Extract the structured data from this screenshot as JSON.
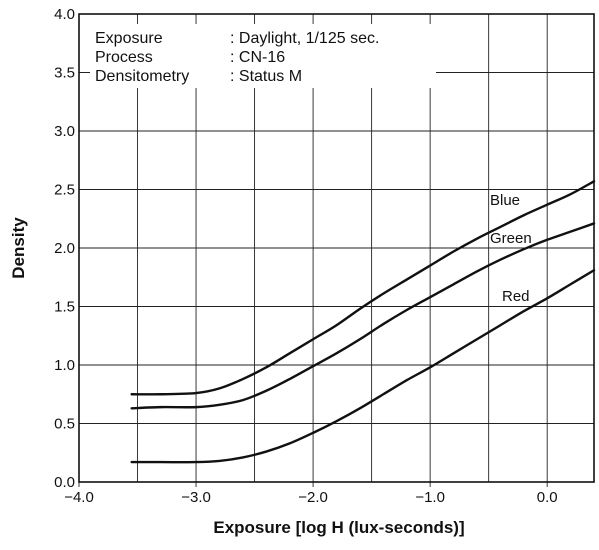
{
  "chart_data": {
    "type": "line",
    "title": "",
    "xlabel": "Exposure [log H (lux-seconds)]",
    "ylabel": "Density",
    "xlim": [
      -4.0,
      0.4
    ],
    "ylim": [
      0.0,
      4.0
    ],
    "x_ticks": [
      -4.0,
      -3.0,
      -2.0,
      -1.0,
      0.0
    ],
    "x_tick_labels": [
      "−4.0",
      "−3.0",
      "−2.0",
      "−1.0",
      "0.0"
    ],
    "y_ticks": [
      0.0,
      0.5,
      1.0,
      1.5,
      2.0,
      2.5,
      3.0,
      3.5,
      4.0
    ],
    "y_tick_labels": [
      "0.0",
      "0.5",
      "1.0",
      "1.5",
      "2.0",
      "2.5",
      "3.0",
      "3.5",
      "4.0"
    ],
    "x_minor_step": 0.5,
    "grid": true,
    "info": [
      {
        "label": "Exposure",
        "value": ": Daylight, 1/125 sec."
      },
      {
        "label": "Process",
        "value": ": CN-16"
      },
      {
        "label": "Densitometry",
        "value": ": Status M"
      }
    ],
    "series": [
      {
        "name": "Blue",
        "x": [
          -3.55,
          -3.3,
          -3.0,
          -2.8,
          -2.6,
          -2.4,
          -2.2,
          -2.0,
          -1.8,
          -1.6,
          -1.4,
          -1.2,
          -1.0,
          -0.8,
          -0.6,
          -0.4,
          -0.2,
          0.0,
          0.2,
          0.4
        ],
        "y": [
          0.75,
          0.75,
          0.76,
          0.8,
          0.88,
          0.98,
          1.1,
          1.22,
          1.34,
          1.48,
          1.61,
          1.73,
          1.85,
          1.97,
          2.08,
          2.18,
          2.28,
          2.37,
          2.46,
          2.57
        ]
      },
      {
        "name": "Green",
        "x": [
          -3.55,
          -3.3,
          -3.0,
          -2.8,
          -2.6,
          -2.4,
          -2.2,
          -2.0,
          -1.8,
          -1.6,
          -1.4,
          -1.2,
          -1.0,
          -0.8,
          -0.6,
          -0.4,
          -0.2,
          0.0,
          0.2,
          0.4
        ],
        "y": [
          0.63,
          0.64,
          0.64,
          0.66,
          0.7,
          0.78,
          0.88,
          0.99,
          1.1,
          1.22,
          1.35,
          1.47,
          1.58,
          1.69,
          1.8,
          1.9,
          1.99,
          2.07,
          2.14,
          2.21
        ]
      },
      {
        "name": "Red",
        "x": [
          -3.55,
          -3.3,
          -3.0,
          -2.8,
          -2.6,
          -2.4,
          -2.2,
          -2.0,
          -1.8,
          -1.6,
          -1.4,
          -1.2,
          -1.0,
          -0.8,
          -0.6,
          -0.4,
          -0.2,
          0.0,
          0.2,
          0.4
        ],
        "y": [
          0.17,
          0.17,
          0.17,
          0.18,
          0.21,
          0.26,
          0.33,
          0.42,
          0.52,
          0.63,
          0.75,
          0.87,
          0.98,
          1.1,
          1.22,
          1.34,
          1.46,
          1.57,
          1.69,
          1.81
        ]
      }
    ]
  }
}
